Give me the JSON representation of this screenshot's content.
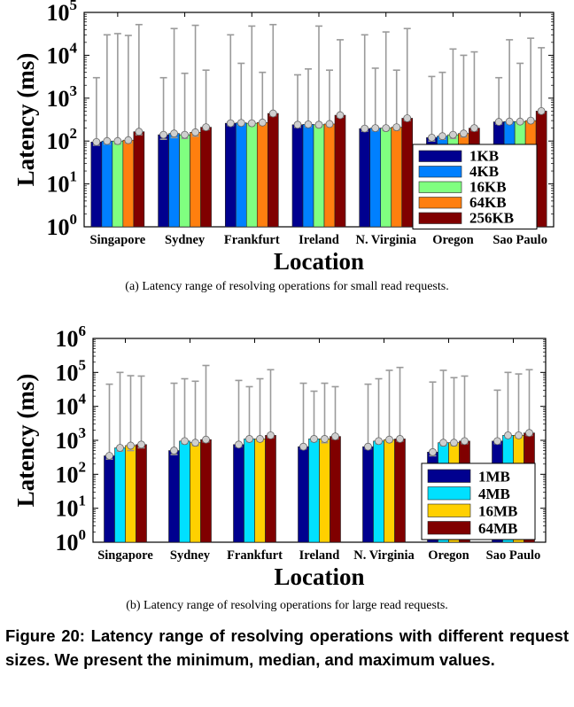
{
  "figure": {
    "caption": "Figure 20: Latency range of resolving operations with different request sizes. We present the minimum, median, and maximum values."
  },
  "chart_data": [
    {
      "type": "bar",
      "subcaption": "(a)  Latency range of resolving operations for small read requests.",
      "xlabel": "Location",
      "ylabel": "Latency (ms)",
      "yscale": "log",
      "ylim": [
        1,
        100000
      ],
      "ytick_exponents": [
        0,
        1,
        2,
        3,
        4,
        5
      ],
      "grid": false,
      "legend_position": "bottom-right",
      "categories": [
        "Singapore",
        "Sydney",
        "Frankfurt",
        "Ireland",
        "N. Virginia",
        "Oregon",
        "Sao Paulo"
      ],
      "series": [
        {
          "name": "1KB",
          "color": "#00008f",
          "values": [
            95,
            140,
            260,
            240,
            195,
            120,
            280
          ],
          "min": [
            80,
            110,
            230,
            210,
            170,
            100,
            250
          ],
          "max": [
            3000,
            3000,
            30000,
            3500,
            30000,
            3200,
            3000
          ]
        },
        {
          "name": "4KB",
          "color": "#0080ff",
          "values": [
            100,
            150,
            265,
            245,
            200,
            130,
            285
          ],
          "min": [
            85,
            120,
            235,
            215,
            175,
            110,
            255
          ],
          "max": [
            30000,
            42000,
            6500,
            4800,
            5000,
            4000,
            23000
          ]
        },
        {
          "name": "16KB",
          "color": "#80ff80",
          "values": [
            100,
            140,
            260,
            240,
            200,
            140,
            285
          ],
          "min": [
            85,
            115,
            230,
            210,
            175,
            115,
            255
          ],
          "max": [
            32000,
            3800,
            48000,
            48000,
            35000,
            14000,
            6500
          ]
        },
        {
          "name": "64KB",
          "color": "#ff7f0f",
          "values": [
            105,
            160,
            270,
            250,
            210,
            150,
            300
          ],
          "min": [
            90,
            130,
            240,
            220,
            180,
            125,
            265
          ],
          "max": [
            29000,
            50000,
            4000,
            4500,
            4500,
            10000,
            25000
          ]
        },
        {
          "name": "256KB",
          "color": "#800000",
          "values": [
            165,
            210,
            440,
            400,
            340,
            200,
            500
          ],
          "min": [
            140,
            185,
            390,
            360,
            300,
            175,
            450
          ],
          "max": [
            52000,
            4500,
            52000,
            23000,
            42000,
            12000,
            15000
          ]
        }
      ]
    },
    {
      "type": "bar",
      "subcaption": "(b)  Latency range of resolving operations for large read requests.",
      "xlabel": "Location",
      "ylabel": "Latency (ms)",
      "yscale": "log",
      "ylim": [
        1,
        1000000
      ],
      "ytick_exponents": [
        0,
        1,
        2,
        3,
        4,
        5,
        6
      ],
      "grid": false,
      "legend_position": "bottom-right",
      "categories": [
        "Singapore",
        "Sydney",
        "Frankfurt",
        "Ireland",
        "N. Virginia",
        "Oregon",
        "Sao Paulo"
      ],
      "series": [
        {
          "name": "1MB",
          "color": "#00008f",
          "values": [
            350,
            500,
            750,
            650,
            650,
            450,
            950
          ],
          "min": [
            280,
            380,
            650,
            560,
            560,
            350,
            800
          ],
          "max": [
            45000,
            48000,
            58000,
            48000,
            45000,
            52000,
            30000
          ]
        },
        {
          "name": "4MB",
          "color": "#00e0ff",
          "values": [
            600,
            950,
            1100,
            1100,
            950,
            850,
            1400
          ],
          "min": [
            480,
            800,
            920,
            920,
            800,
            700,
            1200
          ],
          "max": [
            100000,
            65000,
            38000,
            28000,
            65000,
            115000,
            100000
          ]
        },
        {
          "name": "16MB",
          "color": "#ffd000",
          "values": [
            700,
            850,
            1100,
            1100,
            1050,
            850,
            1400
          ],
          "min": [
            500,
            700,
            950,
            850,
            900,
            700,
            1200
          ],
          "max": [
            80000,
            55000,
            65000,
            48000,
            115000,
            70000,
            90000
          ]
        },
        {
          "name": "64MB",
          "color": "#800000",
          "values": [
            750,
            1050,
            1400,
            1300,
            1100,
            950,
            1650
          ],
          "min": [
            600,
            900,
            1200,
            1100,
            950,
            800,
            1400
          ],
          "max": [
            78000,
            160000,
            120000,
            38000,
            140000,
            78000,
            120000
          ]
        }
      ]
    }
  ]
}
